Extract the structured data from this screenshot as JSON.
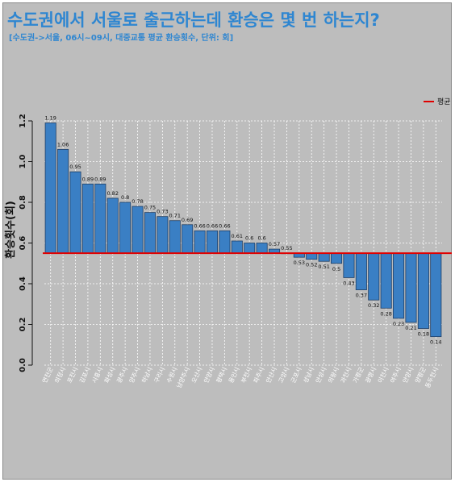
{
  "header": {
    "title": "수도권에서 서울로 출근하는데 환승은 몇 번 하는지?",
    "subtitle": "[수도권->서울, 06시~09시, 대중교통 평균 환승횟수, 단위: 회]"
  },
  "colors": {
    "bar": "#3a7fc4",
    "bar_stroke": "#1f3f66",
    "mean_line": "#e00000",
    "background": "#bdbdbd"
  },
  "chart_data": {
    "type": "bar",
    "title": "수도권에서 서울로 출근하는데 환승은 몇 번 하는지?",
    "subtitle": "[수도권->서울, 06시~09시, 대중교통 평균 환승횟수, 단위: 회]",
    "xlabel": "",
    "ylabel": "환승횟수(회)",
    "ylim": [
      0,
      1.2
    ],
    "yticks": [
      "0.0",
      "0.2",
      "0.4",
      "0.6",
      "0.8",
      "1.0",
      "1.2"
    ],
    "grid": true,
    "baseline": 0.55,
    "legend": {
      "label": "평균",
      "position": "top-right"
    },
    "categories": [
      "연천군",
      "의정시",
      "포천시",
      "김포시",
      "시흥시",
      "화성시",
      "광주시",
      "양주시",
      "하남시",
      "구리시",
      "수원시",
      "남양주시",
      "오산시",
      "안양시",
      "평택시",
      "용인시",
      "부천시",
      "파주시",
      "안산시",
      "고양시",
      "군포시",
      "성남시",
      "안성시",
      "의왕시",
      "과천시",
      "가평군",
      "광명시",
      "이천시",
      "여주시",
      "안양시",
      "양평군",
      "동두천시"
    ],
    "values": [
      1.19,
      1.06,
      0.95,
      0.89,
      0.89,
      0.82,
      0.8,
      0.78,
      0.75,
      0.73,
      0.71,
      0.69,
      0.66,
      0.66,
      0.66,
      0.61,
      0.6,
      0.6,
      0.57,
      0.55,
      0.53,
      0.52,
      0.51,
      0.5,
      0.43,
      0.37,
      0.32,
      0.28,
      0.23,
      0.21,
      0.18,
      0.14
    ],
    "labels": [
      "1.19",
      "1.06",
      "0.95",
      "0.89",
      "0.89",
      "0.82",
      "0.8",
      "0.78",
      "0.75",
      "0.73",
      "0.71",
      "0.69",
      "0.66",
      "0.66",
      "0.66",
      "0.61",
      "0.6",
      "0.6",
      "0.57",
      "0.55",
      "0.53",
      "0.52",
      "0.51",
      "0.5",
      "0.43",
      "0.37",
      "0.32",
      "0.28",
      "0.23",
      "0.21",
      "0.18",
      "0.14"
    ]
  }
}
